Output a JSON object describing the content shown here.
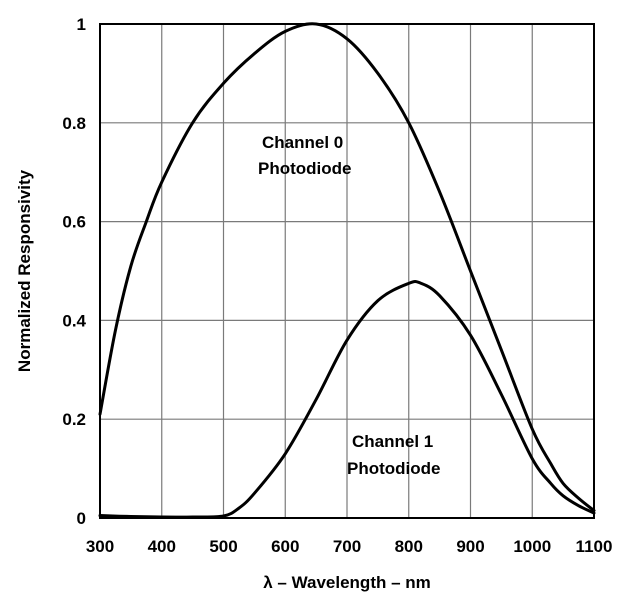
{
  "chart_data": {
    "type": "line",
    "title": "",
    "xlabel": "λ – Wavelength – nm",
    "ylabel": "Normalized Responsivity",
    "xlim": [
      300,
      1100
    ],
    "ylim": [
      0,
      1
    ],
    "x_ticks": [
      "300",
      "400",
      "500",
      "600",
      "700",
      "800",
      "900",
      "1000",
      "1100"
    ],
    "y_ticks": [
      "0",
      "0.2",
      "0.4",
      "0.6",
      "0.8",
      "1"
    ],
    "grid": true,
    "series": [
      {
        "name": "Channel 0 Photodiode",
        "points": [
          [
            300,
            0.21
          ],
          [
            325,
            0.38
          ],
          [
            350,
            0.51
          ],
          [
            375,
            0.6
          ],
          [
            400,
            0.68
          ],
          [
            450,
            0.8
          ],
          [
            500,
            0.88
          ],
          [
            550,
            0.94
          ],
          [
            600,
            0.985
          ],
          [
            650,
            1.0
          ],
          [
            700,
            0.97
          ],
          [
            750,
            0.9
          ],
          [
            800,
            0.8
          ],
          [
            850,
            0.66
          ],
          [
            900,
            0.5
          ],
          [
            950,
            0.34
          ],
          [
            1000,
            0.18
          ],
          [
            1030,
            0.11
          ],
          [
            1050,
            0.07
          ],
          [
            1075,
            0.04
          ],
          [
            1100,
            0.015
          ]
        ]
      },
      {
        "name": "Channel 1 Photodiode",
        "points": [
          [
            300,
            0.005
          ],
          [
            350,
            0.003
          ],
          [
            400,
            0.002
          ],
          [
            450,
            0.002
          ],
          [
            500,
            0.004
          ],
          [
            525,
            0.02
          ],
          [
            550,
            0.05
          ],
          [
            600,
            0.13
          ],
          [
            650,
            0.24
          ],
          [
            700,
            0.36
          ],
          [
            750,
            0.44
          ],
          [
            800,
            0.475
          ],
          [
            820,
            0.475
          ],
          [
            850,
            0.45
          ],
          [
            900,
            0.37
          ],
          [
            950,
            0.25
          ],
          [
            1000,
            0.12
          ],
          [
            1030,
            0.07
          ],
          [
            1050,
            0.045
          ],
          [
            1075,
            0.025
          ],
          [
            1100,
            0.01
          ]
        ]
      }
    ],
    "annotations": [
      {
        "lines": [
          "Channel 0",
          "Photodiode"
        ]
      },
      {
        "lines": [
          "Channel 1",
          "Photodiode"
        ]
      }
    ]
  }
}
